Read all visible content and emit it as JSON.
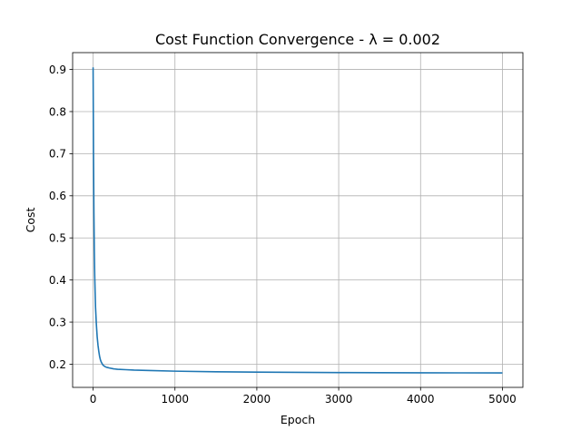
{
  "chart_data": {
    "type": "line",
    "title": "Cost Function Convergence - λ = 0.002",
    "xlabel": "Epoch",
    "ylabel": "Cost",
    "xlim": [
      -250,
      5250
    ],
    "ylim": [
      0.145,
      0.94
    ],
    "x_ticks": [
      0,
      1000,
      2000,
      3000,
      4000,
      5000
    ],
    "x_tick_labels": [
      "0",
      "1000",
      "2000",
      "3000",
      "4000",
      "5000"
    ],
    "y_ticks": [
      0.2,
      0.3,
      0.4,
      0.5,
      0.6,
      0.7,
      0.8,
      0.9
    ],
    "y_tick_labels": [
      "0.2",
      "0.3",
      "0.4",
      "0.5",
      "0.6",
      "0.7",
      "0.8",
      "0.9"
    ],
    "grid": true,
    "line_color": "#1f77b4",
    "series": [
      {
        "x": [
          0,
          5,
          10,
          15,
          20,
          25,
          30,
          40,
          50,
          60,
          70,
          80,
          90,
          100,
          120,
          140,
          160,
          180,
          200,
          250,
          300,
          400,
          500,
          700,
          1000,
          1500,
          2000,
          2500,
          3000,
          3500,
          4000,
          4500,
          5000
        ],
        "values": [
          0.905,
          0.7,
          0.56,
          0.47,
          0.41,
          0.37,
          0.335,
          0.295,
          0.265,
          0.245,
          0.23,
          0.218,
          0.21,
          0.205,
          0.198,
          0.195,
          0.193,
          0.192,
          0.191,
          0.189,
          0.188,
          0.187,
          0.186,
          0.185,
          0.1835,
          0.182,
          0.1812,
          0.1806,
          0.1802,
          0.1799,
          0.1797,
          0.1795,
          0.1793
        ]
      }
    ]
  }
}
